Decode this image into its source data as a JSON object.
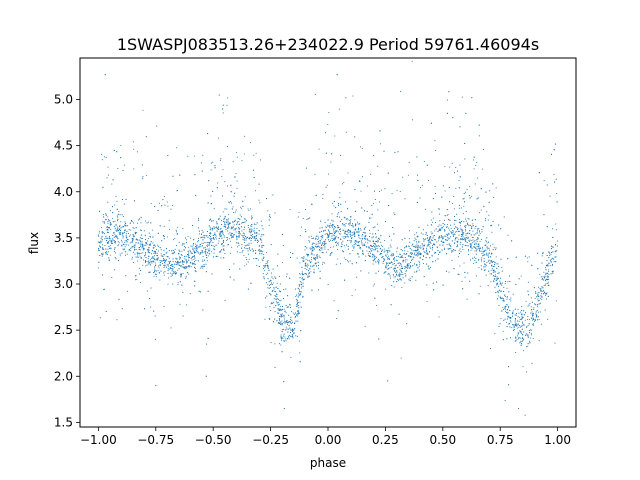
{
  "chart_data": {
    "type": "scatter",
    "title": "1SWASPJ083513.26+234022.9 Period 59761.46094s",
    "xlabel": "phase",
    "ylabel": "flux",
    "xlim": [
      -1.08,
      1.08
    ],
    "ylim": [
      1.45,
      5.45
    ],
    "xticks": [
      -1.0,
      -0.75,
      -0.5,
      -0.25,
      0.0,
      0.25,
      0.5,
      0.75,
      1.0
    ],
    "xtick_labels": [
      "−1.00",
      "−0.75",
      "−0.50",
      "−0.25",
      "0.00",
      "0.25",
      "0.50",
      "0.75",
      "1.00"
    ],
    "yticks": [
      1.5,
      2.0,
      2.5,
      3.0,
      3.5,
      4.0,
      4.5,
      5.0
    ],
    "ytick_labels": [
      "1.5",
      "2.0",
      "2.5",
      "3.0",
      "3.5",
      "4.0",
      "4.5",
      "5.0"
    ],
    "grid": false,
    "marker_color": "#1f77b4",
    "light_curve_trend": {
      "phase": [
        -1.0,
        -0.9,
        -0.8,
        -0.7,
        -0.6,
        -0.5,
        -0.4,
        -0.3,
        -0.2,
        -0.15,
        -0.1,
        0.0,
        0.1,
        0.2,
        0.3,
        0.4,
        0.5,
        0.6,
        0.7,
        0.8,
        0.85,
        0.9,
        1.0
      ],
      "flux": [
        3.45,
        3.55,
        3.4,
        3.2,
        3.3,
        3.5,
        3.6,
        3.45,
        2.6,
        2.5,
        3.2,
        3.55,
        3.55,
        3.4,
        3.2,
        3.35,
        3.55,
        3.55,
        3.3,
        2.6,
        2.5,
        2.7,
        3.45
      ]
    },
    "outlier_points": [
      {
        "x": -0.97,
        "y": 5.27
      },
      {
        "x": 0.04,
        "y": 5.27
      },
      {
        "x": 0.52,
        "y": 4.85
      },
      {
        "x": 0.6,
        "y": 4.85
      },
      {
        "x": -0.19,
        "y": 1.65
      },
      {
        "x": 0.83,
        "y": 1.65
      },
      {
        "x": -0.53,
        "y": 2.0
      },
      {
        "x": 0.26,
        "y": 1.95
      },
      {
        "x": -0.75,
        "y": 1.9
      }
    ]
  }
}
